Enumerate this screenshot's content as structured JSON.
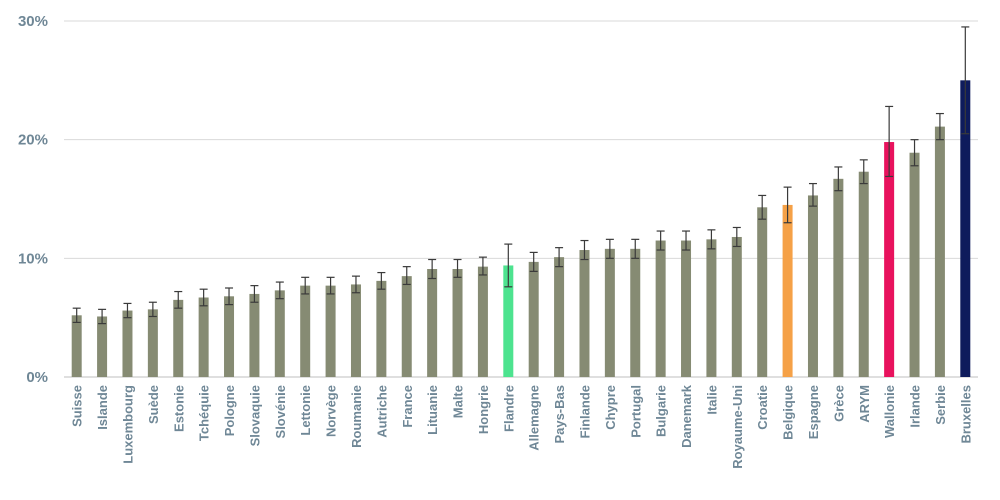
{
  "chart_data": {
    "type": "bar",
    "title": "",
    "xlabel": "",
    "ylabel": "",
    "ylim": [
      0,
      30
    ],
    "yticks": [
      {
        "value": 0,
        "label": "0%"
      },
      {
        "value": 10,
        "label": "10%"
      },
      {
        "value": 20,
        "label": "20%"
      },
      {
        "value": 30,
        "label": "30%"
      }
    ],
    "grid": true,
    "categories": [
      "Suisse",
      "Islande",
      "Luxembourg",
      "Suède",
      "Estonie",
      "Tchéquie",
      "Pologne",
      "Slovaquie",
      "Slovénie",
      "Lettonie",
      "Norvège",
      "Roumanie",
      "Autriche",
      "France",
      "Lituanie",
      "Malte",
      "Hongrie",
      "Flandre",
      "Allemagne",
      "Pays-Bas",
      "Finlande",
      "Chypre",
      "Portugal",
      "Bulgarie",
      "Danemark",
      "Italie",
      "Royaume-Uni",
      "Croatie",
      "Belgique",
      "Espagne",
      "Grèce",
      "ARYM",
      "Wallonie",
      "Irlande",
      "Serbie",
      "Bruxelles"
    ],
    "values": [
      5.2,
      5.1,
      5.6,
      5.7,
      6.5,
      6.7,
      6.8,
      7.0,
      7.3,
      7.7,
      7.7,
      7.8,
      8.1,
      8.5,
      9.1,
      9.1,
      9.3,
      9.4,
      9.7,
      10.1,
      10.7,
      10.8,
      10.8,
      11.5,
      11.5,
      11.6,
      11.8,
      14.3,
      14.5,
      15.3,
      16.7,
      17.3,
      19.8,
      18.9,
      21.1,
      25.0
    ],
    "error_low": [
      4.6,
      4.5,
      5.0,
      5.1,
      5.8,
      6.0,
      6.1,
      6.3,
      6.6,
      7.0,
      7.0,
      7.1,
      7.4,
      7.8,
      8.3,
      8.4,
      8.6,
      7.6,
      8.9,
      9.3,
      9.9,
      10.0,
      10.0,
      10.7,
      10.7,
      10.8,
      11.0,
      13.3,
      13.0,
      14.4,
      15.7,
      16.3,
      16.9,
      17.8,
      20.0,
      20.5
    ],
    "error_high": [
      5.8,
      5.7,
      6.2,
      6.3,
      7.2,
      7.4,
      7.5,
      7.7,
      8.0,
      8.4,
      8.4,
      8.5,
      8.8,
      9.3,
      9.9,
      9.9,
      10.1,
      11.2,
      10.5,
      10.9,
      11.5,
      11.6,
      11.6,
      12.3,
      12.3,
      12.4,
      12.6,
      15.3,
      16.0,
      16.3,
      17.7,
      18.3,
      22.8,
      20.0,
      22.2,
      29.5
    ],
    "colors": {
      "default": "#868b73",
      "highlight": {
        "Flandre": "#4de38f",
        "Belgique": "#f5a147",
        "Wallonie": "#e8125d",
        "Bruxelles": "#0e1b5c"
      },
      "error_bar": "#3a3a3a",
      "grid": "#d9d9d9",
      "label": "#6f8796"
    }
  }
}
